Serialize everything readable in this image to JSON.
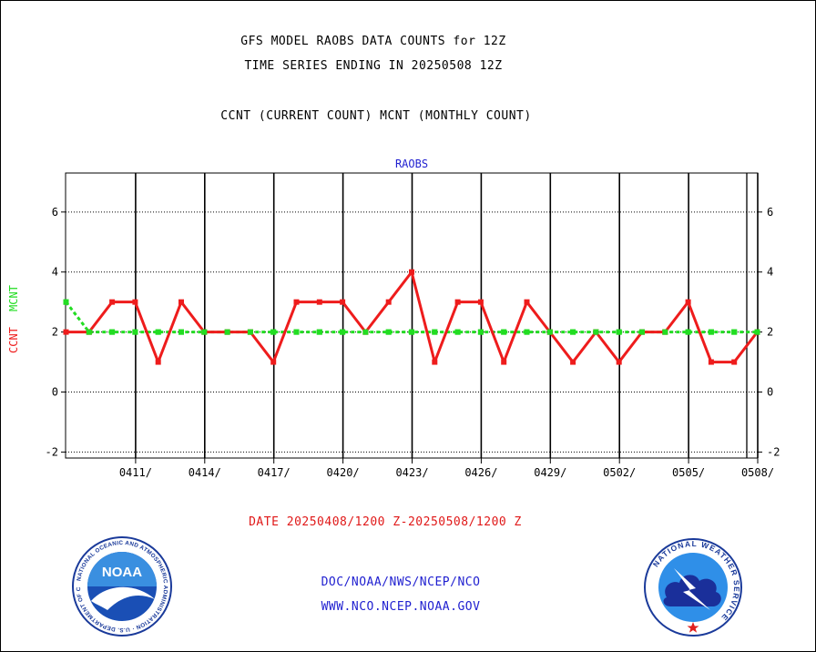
{
  "header": {
    "title_line1": "GFS MODEL RAOBS DATA COUNTS for 12Z",
    "title_line2": "TIME SERIES ENDING IN 20250508 12Z",
    "subtitle": "CCNT (CURRENT COUNT) MCNT (MONTHLY COUNT)"
  },
  "footer": {
    "date_range": "DATE 20250408/1200 Z-20250508/1200 Z",
    "agency": "DOC/NOAA/NWS/NCEP/NCO",
    "website": "WWW.NCO.NCEP.NOAA.GOV",
    "noaa_logo_text": "NOAA",
    "noaa_seal_text": "NATIONAL OCEANIC AND ATMOSPHERIC ADMINISTRATION · U.S. DEPARTMENT OF COMMERCE",
    "nws_seal_text": "NATIONAL WEATHER SERVICE"
  },
  "chart_data": {
    "type": "line",
    "title": "RAOBS",
    "ylabel_series1": "CCNT",
    "ylabel_series2": "MCNT",
    "ylim": [
      -2.2,
      7.3
    ],
    "yticks": [
      -2,
      0,
      2,
      4,
      6
    ],
    "ytick_labels": [
      "-2",
      "0",
      "2",
      "4",
      "6"
    ],
    "xtick_labels": [
      "0411/",
      "0414/",
      "0417/",
      "0420/",
      "0423/",
      "0426/",
      "0429/",
      "0502/",
      "0505/",
      "0508/"
    ],
    "grid": true,
    "series": [
      {
        "name": "CCNT",
        "color": "#ee1c1c",
        "values": [
          2,
          2,
          3,
          3,
          1,
          3,
          2,
          2,
          2,
          1,
          3,
          3,
          3,
          2,
          3,
          4,
          1,
          3,
          3,
          1,
          3,
          2,
          1,
          2,
          1,
          2,
          2,
          3,
          1,
          1,
          2
        ]
      },
      {
        "name": "MCNT",
        "color": "#22dd22",
        "values": [
          3,
          2,
          2,
          2,
          2,
          2,
          2,
          2,
          2,
          2,
          2,
          2,
          2,
          2,
          2,
          2,
          2,
          2,
          2,
          2,
          2,
          2,
          2,
          2,
          2,
          2,
          2,
          2,
          2,
          2,
          2
        ]
      }
    ]
  },
  "colors": {
    "ccnt": "#ee1c1c",
    "mcnt": "#22dd22",
    "title_blue": "#1f1fd0"
  }
}
